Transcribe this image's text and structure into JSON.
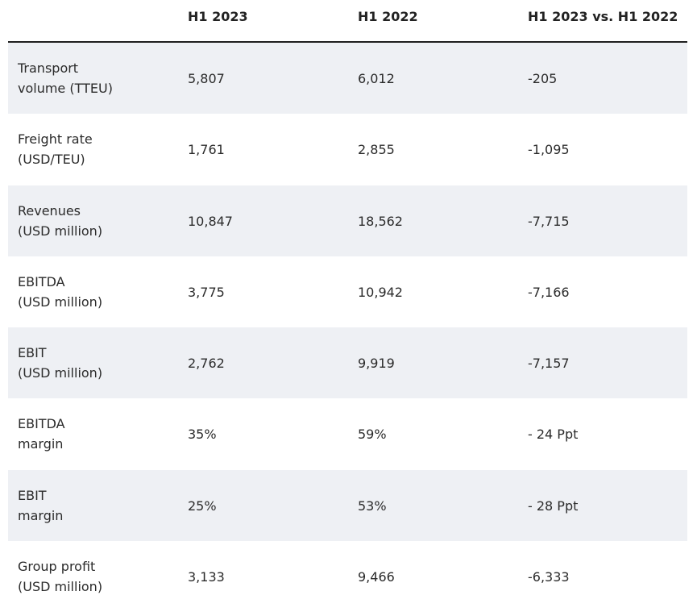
{
  "header": {
    "col0": "",
    "col1": "H1 2023",
    "col2": "H1 2022",
    "col3": "H1 2023 vs. H1 2022"
  },
  "rows": [
    {
      "label_line1": "Transport",
      "label_line2": "volume (TTEU)",
      "h1_2023": "5,807",
      "h1_2022": "6,012",
      "diff": "-205",
      "shaded": true
    },
    {
      "label_line1": "Freight rate",
      "label_line2": "(USD/TEU)",
      "h1_2023": "1,761",
      "h1_2022": "2,855",
      "diff": "-1,095",
      "shaded": false
    },
    {
      "label_line1": "Revenues",
      "label_line2": "(USD million)",
      "h1_2023": "10,847",
      "h1_2022": "18,562",
      "diff": "-7,715",
      "shaded": true
    },
    {
      "label_line1": "EBITDA",
      "label_line2": "(USD million)",
      "h1_2023": "3,775",
      "h1_2022": "10,942",
      "diff": "-7,166",
      "shaded": false
    },
    {
      "label_line1": "EBIT",
      "label_line2": "(USD million)",
      "h1_2023": "2,762",
      "h1_2022": "9,919",
      "diff": "-7,157",
      "shaded": true
    },
    {
      "label_line1": "EBITDA",
      "label_line2": "margin",
      "h1_2023": "35%",
      "h1_2022": "59%",
      "diff": "- 24 Ppt",
      "shaded": false
    },
    {
      "label_line1": "EBIT",
      "label_line2": "margin",
      "h1_2023": "25%",
      "h1_2022": "53%",
      "diff": "- 28 Ppt",
      "shaded": true
    },
    {
      "label_line1": "Group profit",
      "label_line2": "(USD million)",
      "h1_2023": "3,133",
      "h1_2022": "9,466",
      "diff": "-6,333",
      "shaded": false
    }
  ],
  "colors": {
    "row_shade": "#eef0f4",
    "header_rule": "#1f1f1f",
    "text": "#2b2b2b"
  }
}
